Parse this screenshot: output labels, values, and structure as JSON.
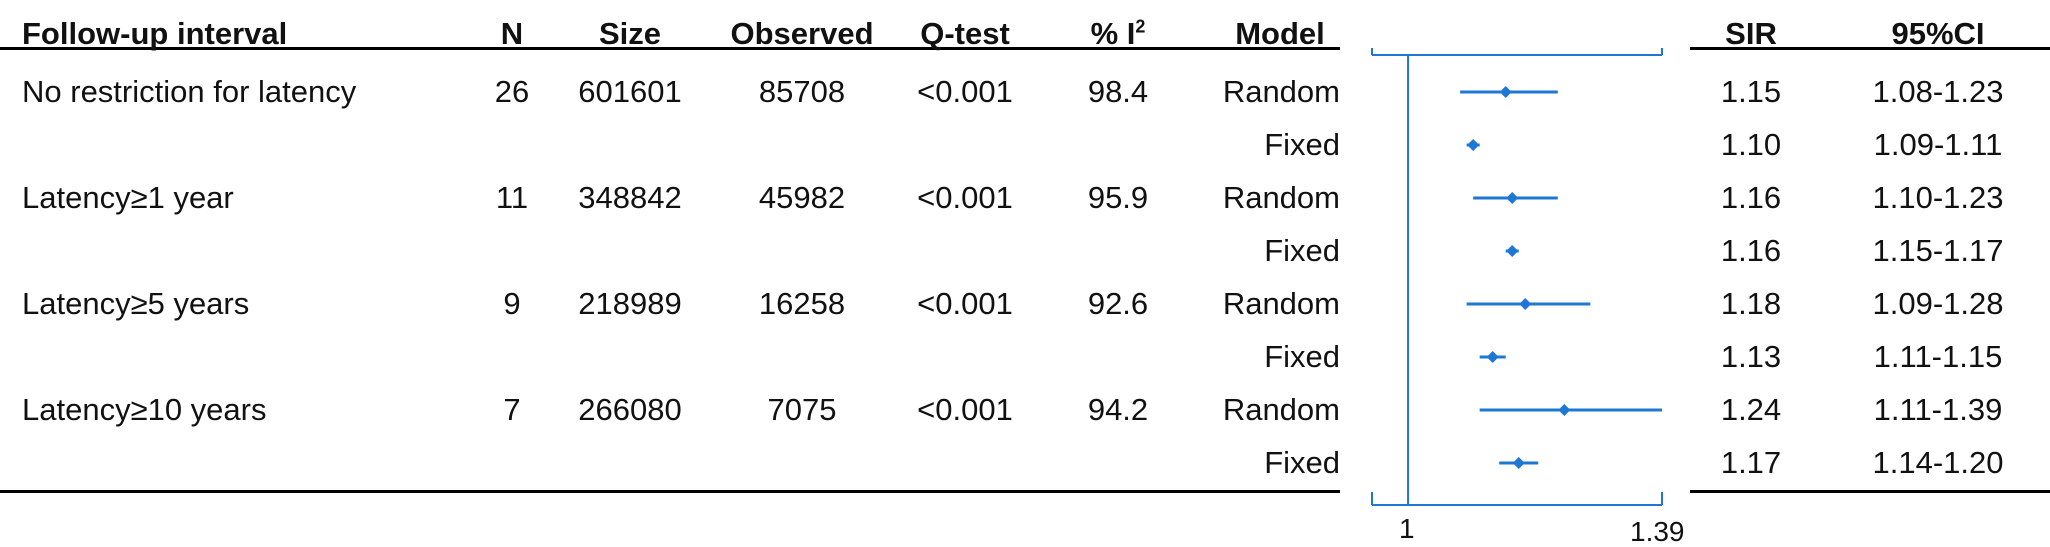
{
  "headers": {
    "interval": "Follow-up interval",
    "n": "N",
    "size": "Size",
    "observed": "Observed",
    "qtest": "Q-test",
    "i2": "% I",
    "i2_sup": "2",
    "model": "Model",
    "sir": "SIR",
    "ci": "95%CI"
  },
  "rows": [
    {
      "interval": "No restriction for latency",
      "n": "26",
      "size": "601601",
      "observed": "85708",
      "qtest": "<0.001",
      "i2": "98.4",
      "model": "Random",
      "sir": "1.15",
      "ci": "1.08-1.23"
    },
    {
      "interval": "",
      "n": "",
      "size": "",
      "observed": "",
      "qtest": "",
      "i2": "",
      "model": "Fixed",
      "sir": "1.10",
      "ci": "1.09-1.11"
    },
    {
      "interval": "Latency≥1 year",
      "n": "11",
      "size": "348842",
      "observed": "45982",
      "qtest": "<0.001",
      "i2": "95.9",
      "model": "Random",
      "sir": "1.16",
      "ci": "1.10-1.23"
    },
    {
      "interval": "",
      "n": "",
      "size": "",
      "observed": "",
      "qtest": "",
      "i2": "",
      "model": "Fixed",
      "sir": "1.16",
      "ci": "1.15-1.17"
    },
    {
      "interval": "Latency≥5 years",
      "n": "9",
      "size": "218989",
      "observed": "16258",
      "qtest": "<0.001",
      "i2": "92.6",
      "model": "Random",
      "sir": "1.18",
      "ci": "1.09-1.28"
    },
    {
      "interval": "",
      "n": "",
      "size": "",
      "observed": "",
      "qtest": "",
      "i2": "",
      "model": "Fixed",
      "sir": "1.13",
      "ci": "1.11-1.15"
    },
    {
      "interval": "Latency≥10 years",
      "n": "7",
      "size": "266080",
      "observed": "7075",
      "qtest": "<0.001",
      "i2": "94.2",
      "model": "Random",
      "sir": "1.24",
      "ci": "1.11-1.39"
    },
    {
      "interval": "",
      "n": "",
      "size": "",
      "observed": "",
      "qtest": "",
      "i2": "",
      "model": "Fixed",
      "sir": "1.17",
      "ci": "1.14-1.20"
    }
  ],
  "chart_data": {
    "type": "forest",
    "x_ticks": [
      "1",
      "1.39"
    ],
    "xlim": [
      0.96,
      1.39
    ],
    "reference_line": 1,
    "color": "#1f77d4",
    "estimates": [
      {
        "sir": 1.15,
        "lower": 1.08,
        "upper": 1.23
      },
      {
        "sir": 1.1,
        "lower": 1.09,
        "upper": 1.11
      },
      {
        "sir": 1.16,
        "lower": 1.1,
        "upper": 1.23
      },
      {
        "sir": 1.16,
        "lower": 1.15,
        "upper": 1.17
      },
      {
        "sir": 1.18,
        "lower": 1.09,
        "upper": 1.28
      },
      {
        "sir": 1.13,
        "lower": 1.11,
        "upper": 1.15
      },
      {
        "sir": 1.24,
        "lower": 1.11,
        "upper": 1.39
      },
      {
        "sir": 1.17,
        "lower": 1.14,
        "upper": 1.2
      }
    ]
  }
}
